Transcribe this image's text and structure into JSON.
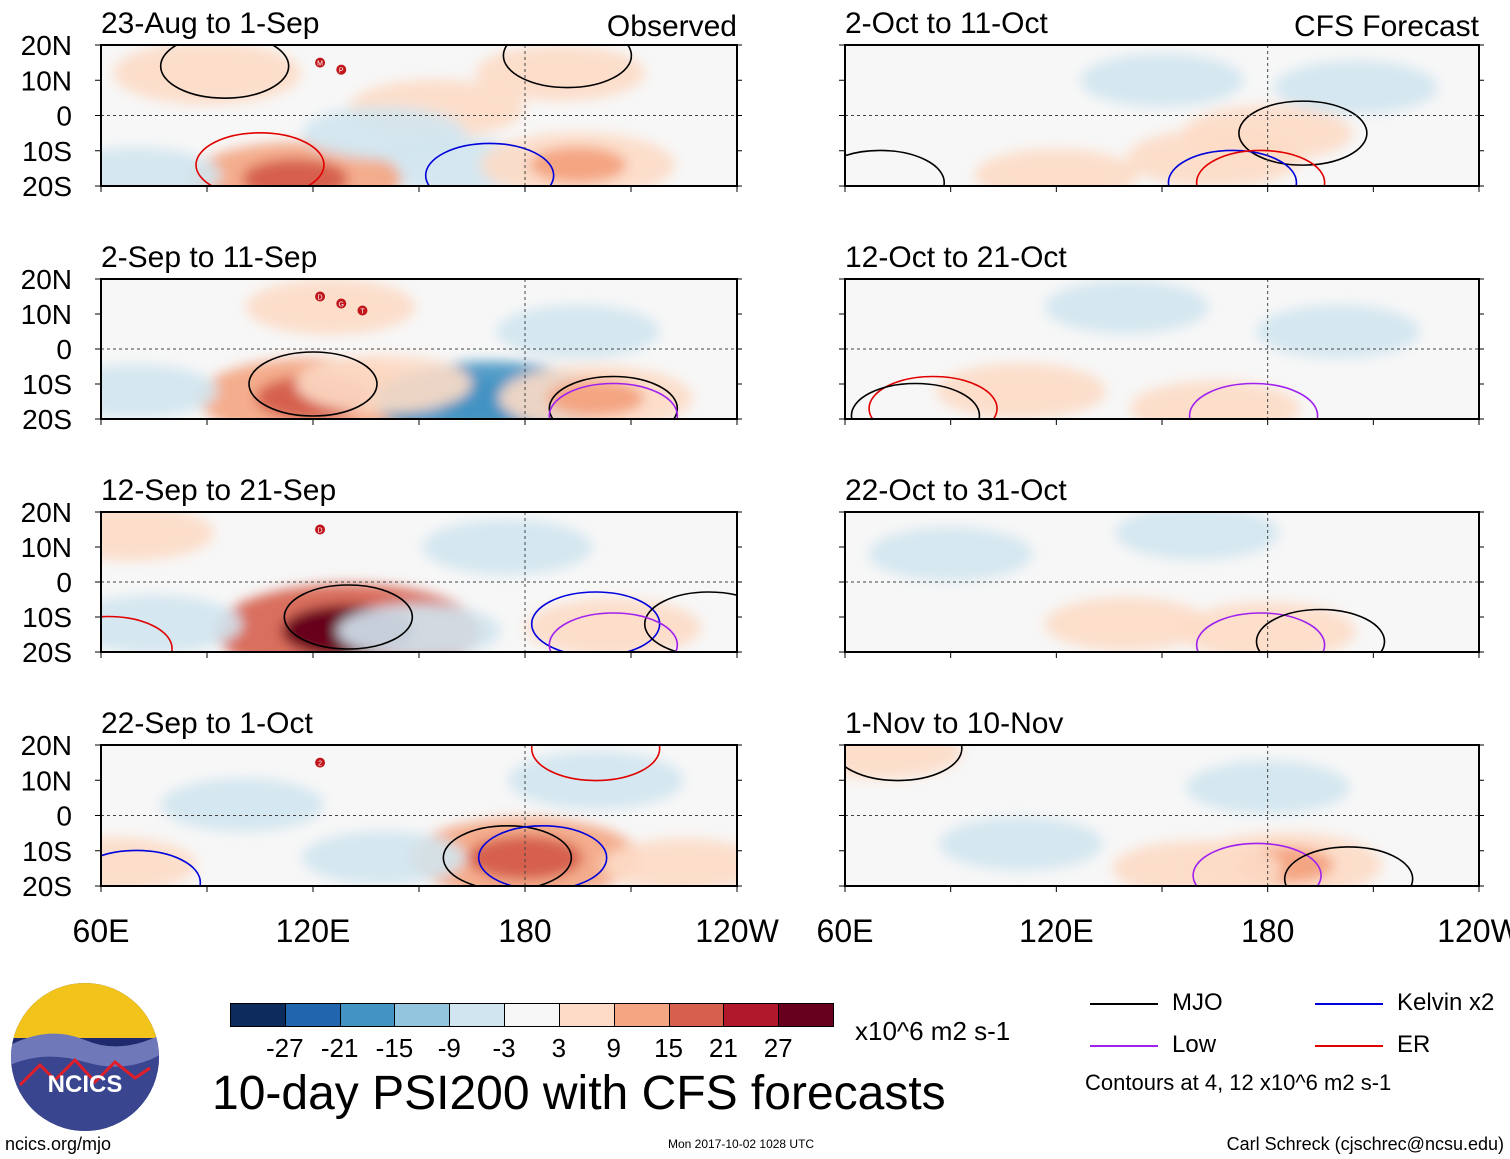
{
  "chart_data": [
    {
      "type": "heatmap",
      "column": "Observed",
      "period": "23-Aug to 1-Sep",
      "header": "Observed",
      "anomalies": [
        {
          "lon": 90,
          "lat": 12,
          "value": 8
        },
        {
          "lon": 155,
          "lat": 2,
          "value": 6
        },
        {
          "lon": 160,
          "lat": -14,
          "value": -5
        },
        {
          "lon": 115,
          "lat": -18,
          "value": 12
        },
        {
          "lon": 195,
          "lat": -14,
          "value": 9
        },
        {
          "lon": 70,
          "lat": -17,
          "value": -5
        },
        {
          "lon": 140,
          "lat": -5,
          "value": -4
        },
        {
          "lon": 190,
          "lat": 12,
          "value": 5
        }
      ],
      "contours": [
        {
          "kind": "MJO",
          "lon": 95,
          "lat": 14,
          "level": 4
        },
        {
          "kind": "ER",
          "lon": 105,
          "lat": -14,
          "level": 4
        },
        {
          "kind": "Kelvin",
          "lon": 170,
          "lat": -17,
          "level": 4
        },
        {
          "kind": "MJO",
          "lon": 192,
          "lat": 17,
          "level": 4
        }
      ],
      "storms": [
        "M",
        "P"
      ]
    },
    {
      "type": "heatmap",
      "column": "Observed",
      "period": "2-Sep to 11-Sep",
      "header": "",
      "anomalies": [
        {
          "lon": 120,
          "lat": -14,
          "value": 15
        },
        {
          "lon": 125,
          "lat": 12,
          "value": 5
        },
        {
          "lon": 170,
          "lat": -15,
          "value": -15
        },
        {
          "lon": 200,
          "lat": -14,
          "value": 9
        },
        {
          "lon": 195,
          "lat": 5,
          "value": -4
        },
        {
          "lon": 70,
          "lat": -12,
          "value": -4
        },
        {
          "lon": 140,
          "lat": -10,
          "value": 6
        }
      ],
      "contours": [
        {
          "kind": "MJO",
          "lon": 120,
          "lat": -10,
          "level": 4
        },
        {
          "kind": "MJO",
          "lon": 205,
          "lat": -17,
          "level": 4
        },
        {
          "kind": "Low",
          "lon": 205,
          "lat": -19,
          "level": 4
        }
      ],
      "storms": [
        "D",
        "G",
        "T"
      ]
    },
    {
      "type": "heatmap",
      "column": "Observed",
      "period": "12-Sep to 21-Sep",
      "header": "",
      "anomalies": [
        {
          "lon": 130,
          "lat": -14,
          "value": 21
        },
        {
          "lon": 75,
          "lat": -12,
          "value": -6
        },
        {
          "lon": 175,
          "lat": 10,
          "value": -5
        },
        {
          "lon": 205,
          "lat": -13,
          "value": 6
        },
        {
          "lon": 68,
          "lat": 14,
          "value": 5
        },
        {
          "lon": 150,
          "lat": -14,
          "value": -4
        }
      ],
      "contours": [
        {
          "kind": "MJO",
          "lon": 130,
          "lat": -10,
          "level": 4
        },
        {
          "kind": "Kelvin",
          "lon": 200,
          "lat": -12,
          "level": 4
        },
        {
          "kind": "MJO",
          "lon": 232,
          "lat": -12,
          "level": 4
        },
        {
          "kind": "Low",
          "lon": 205,
          "lat": -18,
          "level": 4
        },
        {
          "kind": "ER",
          "lon": 62,
          "lat": -19,
          "level": 4
        }
      ],
      "storms": [
        "D"
      ]
    },
    {
      "type": "heatmap",
      "column": "Observed",
      "period": "22-Sep to 1-Oct",
      "header": "",
      "anomalies": [
        {
          "lon": 180,
          "lat": -12,
          "value": 15
        },
        {
          "lon": 100,
          "lat": 3,
          "value": -4
        },
        {
          "lon": 140,
          "lat": -12,
          "value": -4
        },
        {
          "lon": 200,
          "lat": 10,
          "value": -6
        },
        {
          "lon": 63,
          "lat": -14,
          "value": 5
        },
        {
          "lon": 225,
          "lat": -14,
          "value": 4
        }
      ],
      "contours": [
        {
          "kind": "MJO",
          "lon": 175,
          "lat": -12,
          "level": 4
        },
        {
          "kind": "Kelvin",
          "lon": 185,
          "lat": -12,
          "level": 4
        },
        {
          "kind": "Kelvin",
          "lon": 70,
          "lat": -19,
          "level": 4
        },
        {
          "kind": "ER",
          "lon": 200,
          "lat": 19,
          "level": 4
        }
      ],
      "storms": [
        "2"
      ]
    },
    {
      "type": "heatmap",
      "column": "CFS Forecast",
      "period": "2-Oct to 11-Oct",
      "header": "CFS Forecast",
      "anomalies": [
        {
          "lon": 165,
          "lat": -12,
          "value": 6
        },
        {
          "lon": 180,
          "lat": -5,
          "value": 5
        },
        {
          "lon": 150,
          "lat": 10,
          "value": -4
        },
        {
          "lon": 205,
          "lat": 8,
          "value": -4
        },
        {
          "lon": 120,
          "lat": -17,
          "value": 4
        }
      ],
      "contours": [
        {
          "kind": "MJO",
          "lon": 190,
          "lat": -5,
          "level": 4
        },
        {
          "kind": "Kelvin",
          "lon": 170,
          "lat": -19,
          "level": 4
        },
        {
          "kind": "ER",
          "lon": 178,
          "lat": -19,
          "level": 4
        },
        {
          "kind": "MJO",
          "lon": 70,
          "lat": -19,
          "level": 4
        }
      ],
      "storms": []
    },
    {
      "type": "heatmap",
      "column": "CFS Forecast",
      "period": "12-Oct to 21-Oct",
      "header": "",
      "anomalies": [
        {
          "lon": 110,
          "lat": -12,
          "value": 5
        },
        {
          "lon": 140,
          "lat": 12,
          "value": -4
        },
        {
          "lon": 200,
          "lat": 5,
          "value": -4
        },
        {
          "lon": 165,
          "lat": -17,
          "value": 5
        }
      ],
      "contours": [
        {
          "kind": "ER",
          "lon": 85,
          "lat": -17,
          "level": 4
        },
        {
          "kind": "MJO",
          "lon": 80,
          "lat": -19,
          "level": 4
        },
        {
          "kind": "Low",
          "lon": 176,
          "lat": -19,
          "level": 4
        }
      ],
      "storms": []
    },
    {
      "type": "heatmap",
      "column": "CFS Forecast",
      "period": "22-Oct to 31-Oct",
      "header": "",
      "anomalies": [
        {
          "lon": 180,
          "lat": -14,
          "value": 6
        },
        {
          "lon": 90,
          "lat": 8,
          "value": -4
        },
        {
          "lon": 160,
          "lat": 14,
          "value": -4
        },
        {
          "lon": 140,
          "lat": -12,
          "value": 4
        }
      ],
      "contours": [
        {
          "kind": "Low",
          "lon": 178,
          "lat": -18,
          "level": 4
        },
        {
          "kind": "MJO",
          "lon": 195,
          "lat": -17,
          "level": 4
        }
      ],
      "storms": []
    },
    {
      "type": "heatmap",
      "column": "CFS Forecast",
      "period": "1-Nov to 10-Nov",
      "header": "",
      "anomalies": [
        {
          "lon": 185,
          "lat": -14,
          "value": 9
        },
        {
          "lon": 180,
          "lat": 8,
          "value": -4
        },
        {
          "lon": 110,
          "lat": -8,
          "value": -4
        },
        {
          "lon": 70,
          "lat": 18,
          "value": 4
        },
        {
          "lon": 160,
          "lat": -15,
          "value": 5
        }
      ],
      "contours": [
        {
          "kind": "Low",
          "lon": 177,
          "lat": -17,
          "level": 4
        },
        {
          "kind": "MJO",
          "lon": 203,
          "lat": -18,
          "level": 4
        },
        {
          "kind": "MJO",
          "lon": 75,
          "lat": 19,
          "level": 4
        }
      ],
      "storms": []
    }
  ],
  "axes": {
    "x_tick_labels": [
      "60E",
      "120E",
      "180",
      "120W"
    ],
    "y_tick_labels": [
      "20N",
      "10N",
      "0",
      "10S",
      "20S"
    ],
    "lon_range": [
      60,
      240
    ],
    "lat_range": [
      -20,
      20
    ]
  },
  "colorbar": {
    "colors": [
      "#0d2b5c",
      "#2166ac",
      "#4393c3",
      "#92c5de",
      "#d1e5f0",
      "#f7f7f7",
      "#fddbc7",
      "#f4a582",
      "#d6604d",
      "#b2182b",
      "#67001f"
    ],
    "tick_labels": [
      "-27",
      "-21",
      "-15",
      "-9",
      "-3",
      "3",
      "9",
      "15",
      "21",
      "27"
    ],
    "units": "x10^6 m2 s-1"
  },
  "contour_colors": {
    "MJO": "#000000",
    "Kelvin": "#0000dd",
    "Low": "#a020f0",
    "ER": "#e00000"
  },
  "legend": [
    {
      "key": "MJO",
      "label": "MJO",
      "color": "#000000"
    },
    {
      "key": "Kelvin",
      "label": "Kelvin x2",
      "color": "#0000dd"
    },
    {
      "key": "Low",
      "label": "Low",
      "color": "#a020f0"
    },
    {
      "key": "ER",
      "label": "ER",
      "color": "#e00000"
    }
  ],
  "contour_note": "Contours at 4, 12 x10^6 m2 s-1",
  "title": "10-day PSI200 with CFS forecasts",
  "logo_text": "NCICS",
  "site_url": "ncics.org/mjo",
  "timestamp": "Mon 2017-10-02 1028 UTC",
  "author": "Carl Schreck (cjschrec@ncsu.edu)"
}
